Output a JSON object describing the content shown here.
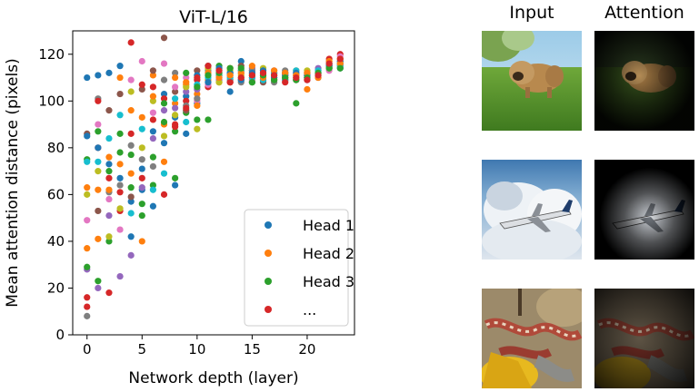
{
  "chart_data": {
    "type": "scatter",
    "title": "ViT-L/16",
    "xlabel": "Network depth (layer)",
    "ylabel": "Mean attention distance (pixels)",
    "xlim": [
      -1.3,
      24.3
    ],
    "ylim": [
      0,
      130
    ],
    "xticks": [
      "0",
      "5",
      "10",
      "15",
      "20"
    ],
    "yticks": [
      "0",
      "20",
      "40",
      "60",
      "80",
      "100",
      "120"
    ],
    "grid": false,
    "legend_position": "bottom-right",
    "legend": [
      "Head 1",
      "Head 2",
      "Head 3",
      "..."
    ],
    "palette": [
      "#1f77b4",
      "#ff7f0e",
      "#2ca02c",
      "#d62728",
      "#9467bd",
      "#8c564b",
      "#e377c2",
      "#7f7f7f",
      "#bcbd22",
      "#17becf"
    ],
    "layers": [
      {
        "x": 0,
        "y": [
          110,
          37,
          75,
          16,
          28,
          86,
          49,
          8,
          60,
          74,
          85,
          63,
          29,
          12
        ]
      },
      {
        "x": 1,
        "y": [
          111,
          62,
          87,
          80,
          20,
          53,
          90,
          101,
          70,
          74,
          80,
          41,
          23,
          100
        ]
      },
      {
        "x": 2,
        "y": [
          112,
          76,
          40,
          18,
          51,
          96,
          58,
          61,
          42,
          84,
          73,
          62,
          70,
          67
        ]
      },
      {
        "x": 3,
        "y": [
          115,
          110,
          78,
          53,
          25,
          103,
          45,
          64,
          54,
          94,
          67,
          73,
          86,
          61
        ]
      },
      {
        "x": 4,
        "y": [
          57,
          69,
          77,
          125,
          34,
          59,
          109,
          81,
          104,
          52,
          42,
          96,
          63,
          86
        ]
      },
      {
        "x": 5,
        "y": [
          62,
          40,
          51,
          67,
          63,
          105,
          117,
          75,
          80,
          88,
          71,
          93,
          56,
          107
        ]
      },
      {
        "x": 6,
        "y": [
          87,
          111,
          64,
          92,
          84,
          113,
          95,
          72,
          100,
          62,
          55,
          102,
          76,
          106
        ]
      },
      {
        "x": 7,
        "y": [
          103,
          90,
          91,
          101,
          96,
          127,
          116,
          109,
          85,
          69,
          82,
          74,
          99,
          60
        ]
      },
      {
        "x": 8,
        "y": [
          93,
          99,
          87,
          90,
          97,
          104,
          106,
          112,
          94,
          101,
          64,
          110,
          67,
          89
        ]
      },
      {
        "x": 9,
        "y": [
          102,
          107,
          95,
          100,
          104,
          96,
          110,
          98,
          106,
          91,
          86,
          108,
          112,
          97
        ]
      },
      {
        "x": 10,
        "y": [
          99,
          103,
          92,
          109,
          105,
          113,
          100,
          101,
          88,
          107,
          111,
          98,
          106,
          110
        ]
      },
      {
        "x": 11,
        "y": [
          115,
          109,
          92,
          106,
          111,
          112,
          107,
          113,
          114,
          110,
          108,
          112,
          111,
          115
        ]
      },
      {
        "x": 12,
        "y": [
          111,
          108,
          115,
          111,
          109,
          112,
          110,
          113,
          108,
          111,
          114,
          110,
          112,
          113
        ]
      },
      {
        "x": 13,
        "y": [
          104,
          114,
          112,
          108,
          112,
          111,
          110,
          109,
          113,
          110,
          112,
          111,
          114,
          108
        ]
      },
      {
        "x": 14,
        "y": [
          117,
          110,
          109,
          113,
          112,
          115,
          110,
          108,
          111,
          113,
          109,
          112,
          114,
          110
        ]
      },
      {
        "x": 15,
        "y": [
          113,
          111,
          108,
          110,
          114,
          112,
          109,
          113,
          111,
          110,
          112,
          115,
          108,
          111
        ]
      },
      {
        "x": 16,
        "y": [
          112,
          109,
          111,
          113,
          110,
          108,
          112,
          111,
          114,
          109,
          113,
          110,
          111,
          112
        ]
      },
      {
        "x": 17,
        "y": [
          110,
          112,
          111,
          109,
          113,
          112,
          110,
          108,
          111,
          112,
          110,
          113,
          109,
          111
        ]
      },
      {
        "x": 18,
        "y": [
          111,
          110,
          112,
          109,
          110,
          112,
          111,
          113,
          110,
          109,
          111,
          112,
          110,
          108
        ]
      },
      {
        "x": 19,
        "y": [
          112,
          113,
          99,
          111,
          110,
          109,
          112,
          111,
          110,
          113,
          112,
          111,
          109,
          110
        ]
      },
      {
        "x": 20,
        "y": [
          110,
          105,
          112,
          111,
          109,
          112,
          110,
          111,
          113,
          110,
          111,
          112,
          110,
          109
        ]
      },
      {
        "x": 21,
        "y": [
          112,
          110,
          113,
          111,
          114,
          112,
          111,
          110,
          112,
          113,
          111,
          110,
          112,
          111
        ]
      },
      {
        "x": 22,
        "y": [
          116,
          115,
          114,
          118,
          116,
          117,
          113,
          115,
          114,
          116,
          115,
          117,
          114,
          116
        ]
      },
      {
        "x": 23,
        "y": [
          114,
          118,
          116,
          120,
          115,
          117,
          119,
          116,
          118,
          115,
          117,
          116,
          114,
          118
        ]
      }
    ]
  },
  "panel": {
    "input_header": "Input",
    "attention_header": "Attention",
    "rows": [
      {
        "input": "dog-photo",
        "attention": "dog-attention-map"
      },
      {
        "input": "airplane-photo",
        "attention": "airplane-attention-map"
      },
      {
        "input": "snake-photo",
        "attention": "snake-attention-map"
      }
    ]
  }
}
